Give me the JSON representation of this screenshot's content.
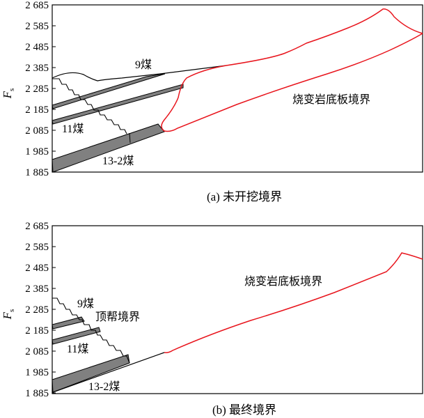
{
  "panels": [
    {
      "id": "a",
      "caption": "(a)  未开挖境界",
      "y_axis_label": "F",
      "y_axis_label_sub": "s",
      "y_ticks": [
        "2 685",
        "2 585",
        "2 485",
        "2 385",
        "2 285",
        "2 185",
        "2 085",
        "1 985",
        "1 885"
      ],
      "annotations": {
        "seam_9": "9煤",
        "seam_11": "11煤",
        "seam_13_2": "13-2煤",
        "floor_boundary": "烧变岩底板境界"
      }
    },
    {
      "id": "b",
      "caption": "(b)  最终境界",
      "y_axis_label": "F",
      "y_axis_label_sub": "s",
      "y_ticks": [
        "2 685",
        "2 585",
        "2 485",
        "2 385",
        "2 285",
        "2 185",
        "2 085",
        "1 985",
        "1 885"
      ],
      "annotations": {
        "seam_9": "9煤",
        "roof_boundary": "顶帮境界",
        "seam_11": "11煤",
        "seam_13_2": "13-2煤",
        "floor_boundary": "烧变岩底板境界"
      }
    }
  ],
  "colors": {
    "boundary_red": "#e8141c",
    "coal_fill": "#808080",
    "line_black": "#000000"
  }
}
